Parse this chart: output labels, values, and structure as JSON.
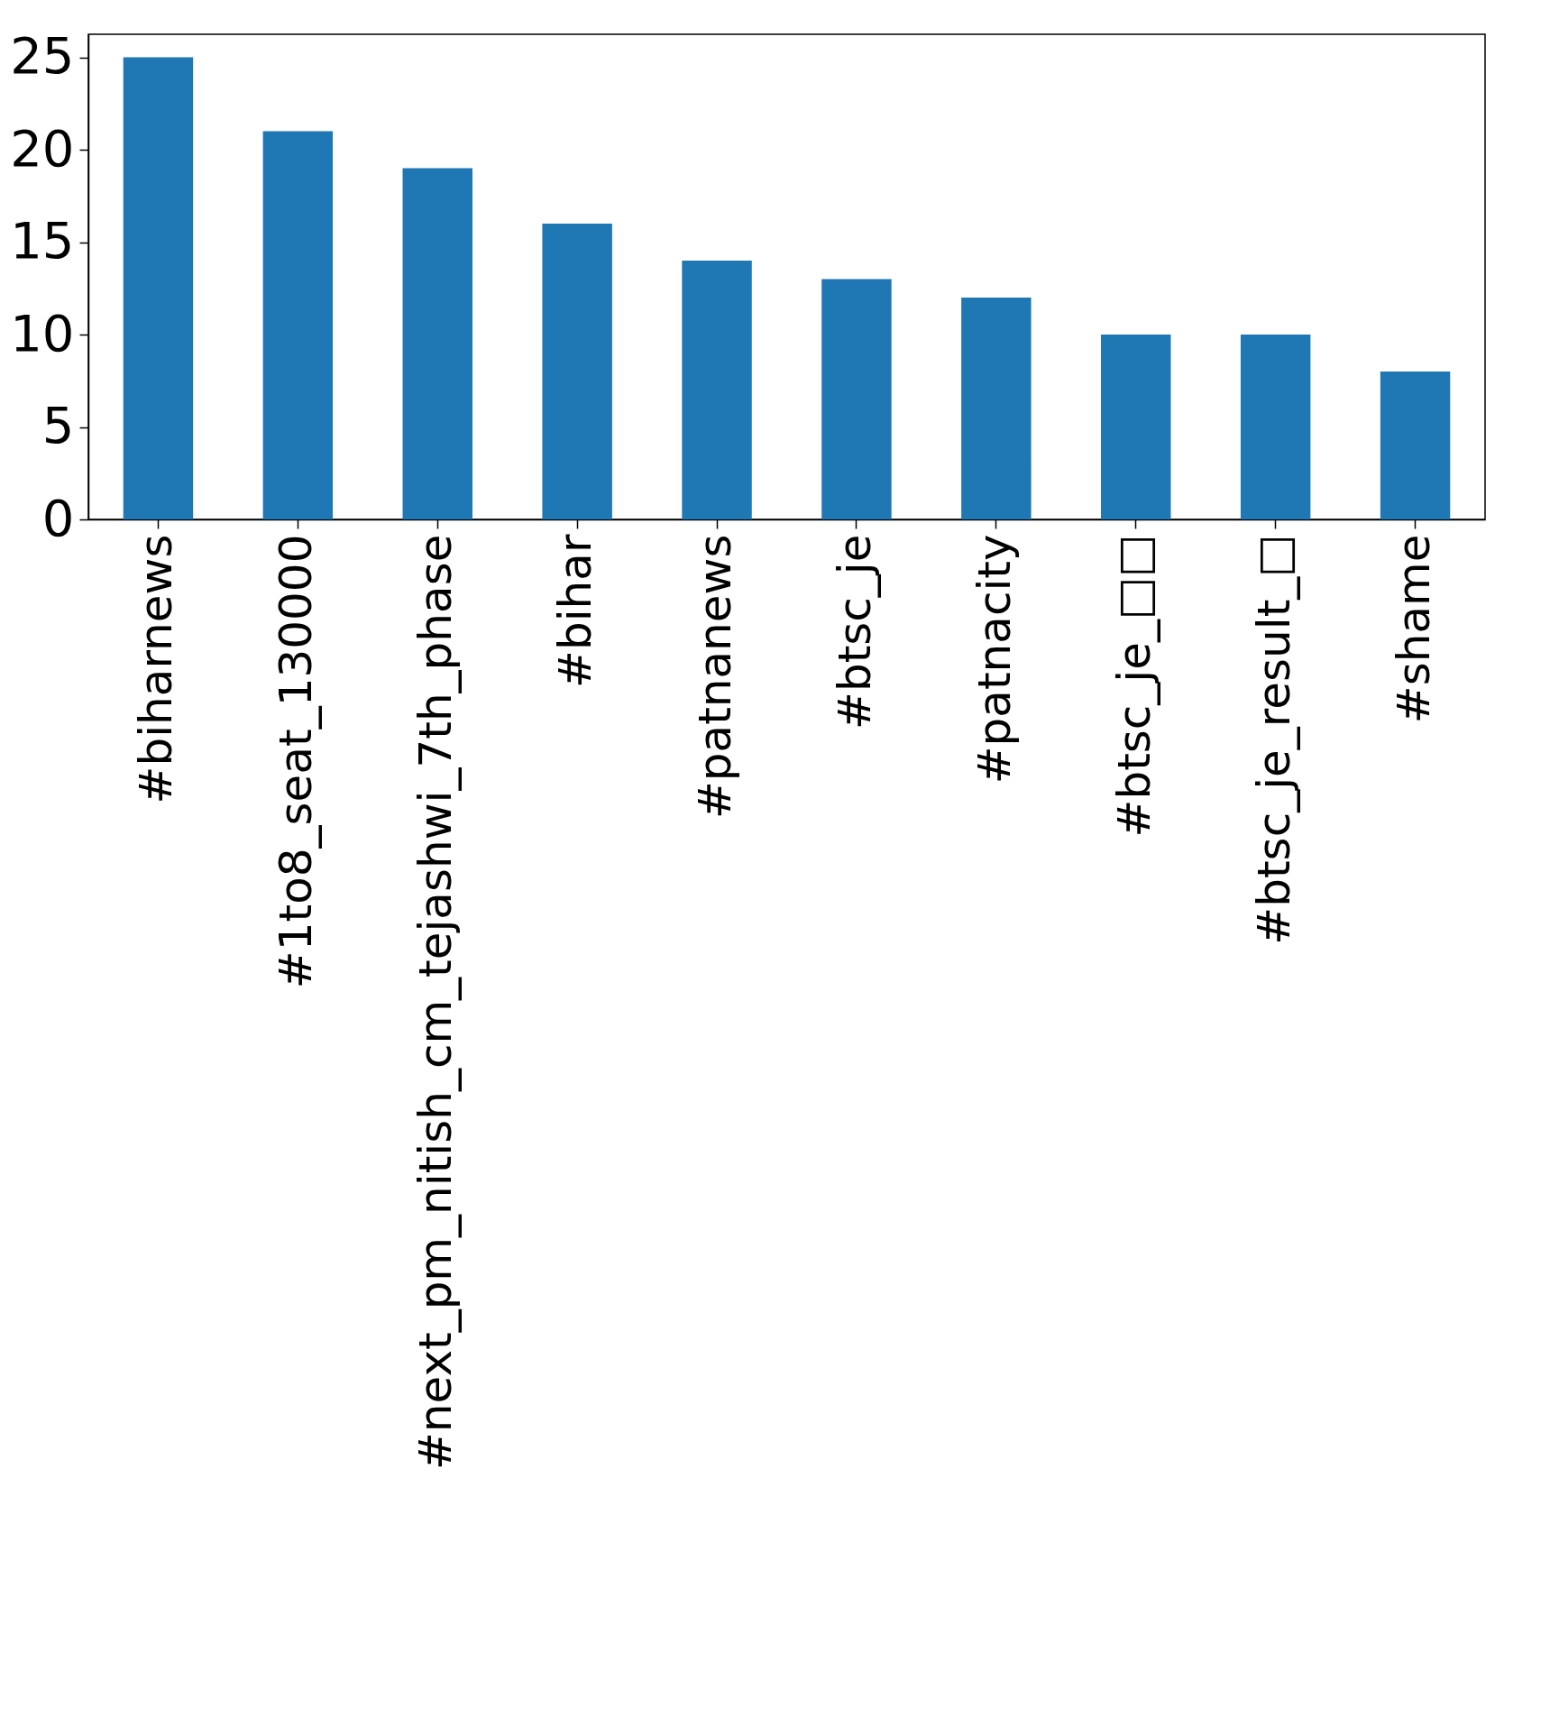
{
  "chart_data": {
    "type": "bar",
    "categories": [
      "#biharnews",
      "#1to8_seat_130000",
      "#next_pm_nitish_cm_tejashwi_7th_phase",
      "#bihar",
      "#patnanews",
      "#btsc_je",
      "#patnacity",
      "#btsc_je_□□",
      "#btsc_je_result_□",
      "#shame"
    ],
    "values": [
      25,
      21,
      19,
      16,
      14,
      13,
      12,
      10,
      10,
      8
    ],
    "color": "#1f77b4",
    "ylim": [
      0,
      26.25
    ],
    "yticks": [
      0,
      5,
      10,
      15,
      20,
      25
    ],
    "grid": false
  }
}
